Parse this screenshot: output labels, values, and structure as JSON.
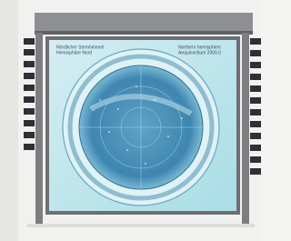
{
  "panel": {
    "left_heading": [
      "Nördlicher Sternhimmel",
      "Hemisphäre Nord"
    ],
    "right_heading": [
      "Northern hemisphere",
      "Aequinoctium 2000.0"
    ]
  }
}
